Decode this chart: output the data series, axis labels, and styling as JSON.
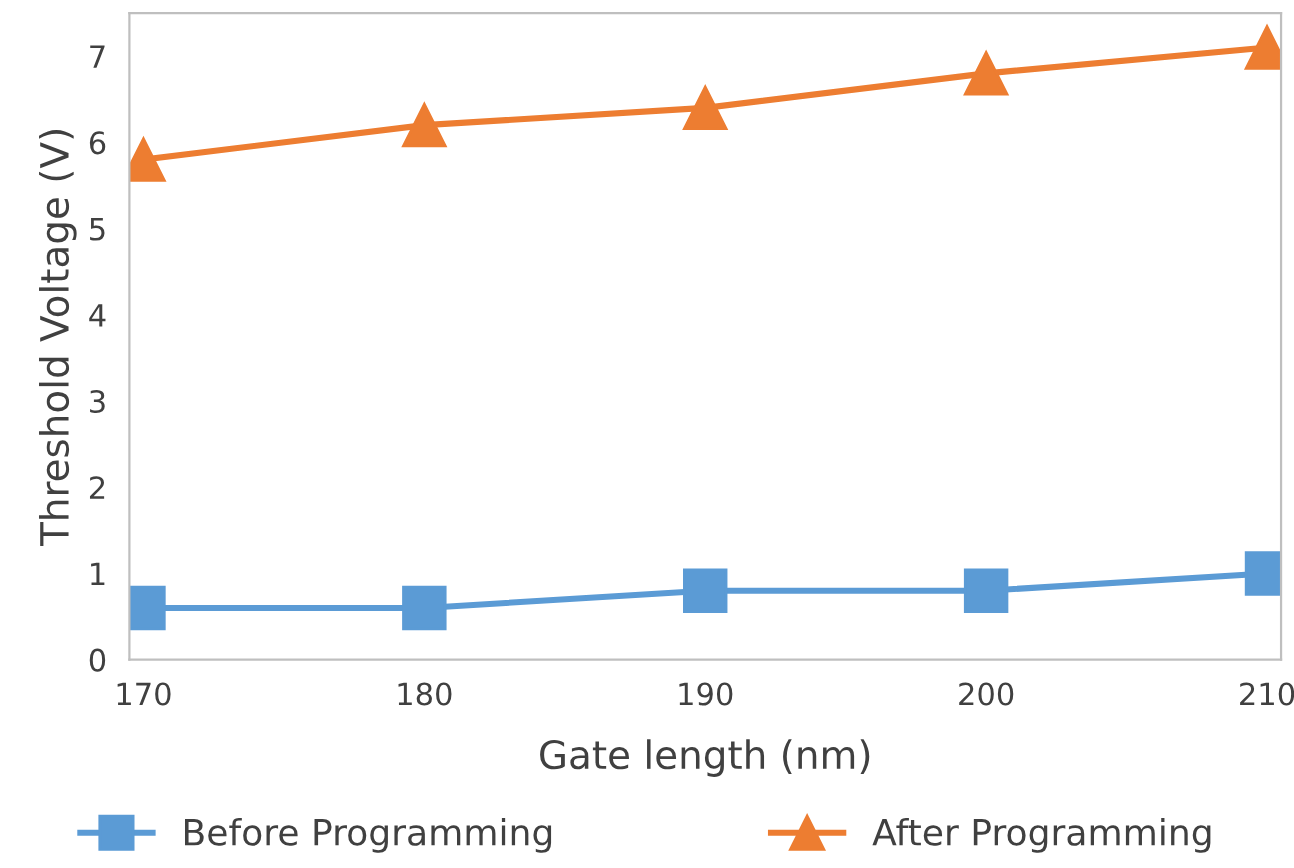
{
  "chart_data": {
    "type": "line",
    "xlabel": "Gate length (nm)",
    "ylabel": "Threshold Voltage (V)",
    "categories": [
      "170",
      "180",
      "190",
      "200",
      "210"
    ],
    "ylim": [
      0,
      7.5
    ],
    "yticks": [
      0,
      1,
      2,
      3,
      4,
      5,
      6,
      7
    ],
    "grid": false,
    "legend": "bottom",
    "line_style": "solid",
    "series": [
      {
        "name": "Before Programming",
        "color": "#5b9bd5",
        "marker": "square",
        "values": [
          0.6,
          0.6,
          0.8,
          0.8,
          1.0
        ]
      },
      {
        "name": "After Programming",
        "color": "#ed7d31",
        "marker": "triangle",
        "values": [
          5.8,
          6.2,
          6.4,
          6.8,
          7.1
        ]
      }
    ]
  }
}
